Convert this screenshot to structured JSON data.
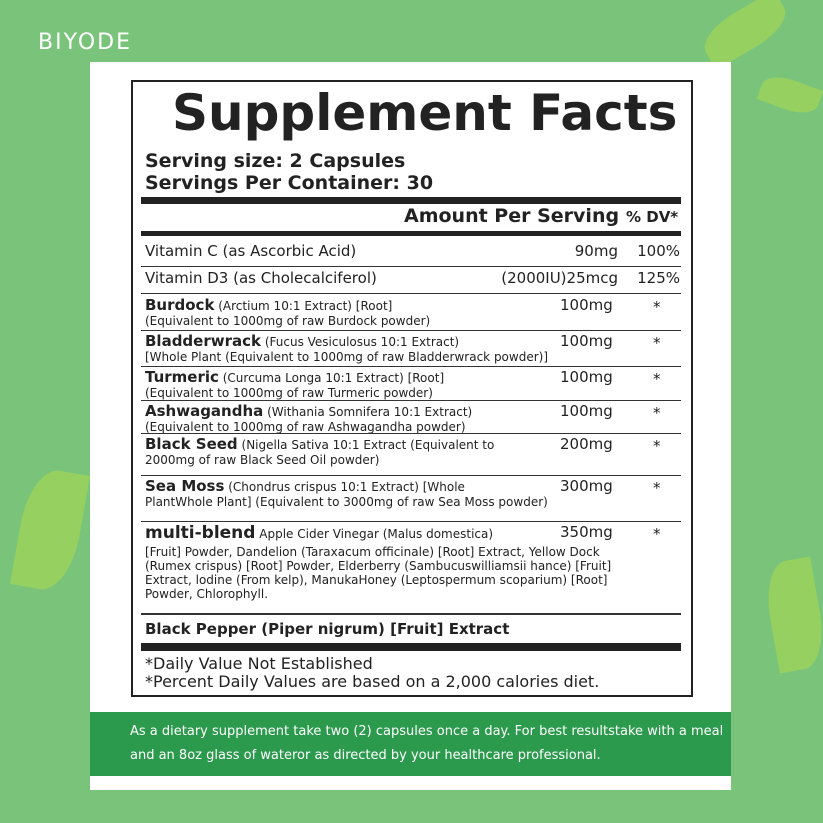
{
  "brand": "BIYODE",
  "label": {
    "title": "Supplement Facts",
    "serving_size": "Serving size: 2 Capsules",
    "servings_per_container": "Servings Per Container: 30",
    "amount_header": "Amount Per Serving",
    "dv_header": "% DV*",
    "vitamins": [
      {
        "name": "Vitamin C (as Ascorbic Acid)",
        "amount": "90mg",
        "dv": "100%"
      },
      {
        "name": "Vitamin D3 (as Cholecalciferol)",
        "amount": "(2000IU)25mcg",
        "dv": "125%"
      }
    ],
    "ingredients": [
      {
        "name": "Burdock",
        "detail": "(Arctium 10:1 Extract) [Root]",
        "lines": [
          "(Equivalent to 1000mg of raw Burdock powder)"
        ],
        "amount": "100mg",
        "dv": "*"
      },
      {
        "name": "Bladderwrack",
        "detail": "(Fucus Vesiculosus 10:1 Extract)",
        "lines": [
          "[Whole Plant (Equivalent to 1000mg of raw Bladderwrack powder)]"
        ],
        "amount": "100mg",
        "dv": "*"
      },
      {
        "name": "Turmeric",
        "detail": "(Curcuma Longa 10:1 Extract) [Root]",
        "lines": [
          "(Equivalent to 1000mg of raw Turmeric powder)"
        ],
        "amount": "100mg",
        "dv": "*"
      },
      {
        "name": "Ashwagandha",
        "detail": "(Withania Somnifera 10:1 Extract)",
        "lines": [
          "(Equivalent to 1000mg of raw Ashwagandha powder)"
        ],
        "amount": "100mg",
        "dv": "*"
      },
      {
        "name": "Black Seed",
        "detail": "(Nigella Sativa 10:1 Extract (Equivalent to",
        "lines": [
          "2000mg of raw Black Seed Oil powder)"
        ],
        "amount": "200mg",
        "dv": "*"
      },
      {
        "name": "Sea Moss",
        "detail": "(Chondrus crispus 10:1 Extract) [Whole",
        "lines": [
          "PlantWhole Plant] (Equivalent to 3000mg of raw Sea Moss powder)"
        ],
        "amount": "300mg",
        "dv": "*"
      },
      {
        "name": "multi-blend",
        "detail": "Apple Cider Vinegar (Malus domestica)",
        "lines": [
          "[Fruit] Powder, Dandelion (Taraxacum officinale) [Root] Extract, Yellow Dock",
          "(Rumex crispus) [Root] Powder, Elderberry (Sambucuswilliamsii hance) [Fruit]",
          "Extract, lodine (From kelp), ManukaHoney (Leptospermum scoparium) [Root]",
          "Powder, Chlorophyll."
        ],
        "amount": "350mg",
        "dv": "*"
      }
    ],
    "black_pepper": "Black Pepper (Piper nigrum) [Fruit] Extract",
    "footnotes": [
      "*Daily Value Not Established",
      "*Percent Daily Values are based on a 2,000 calories diet."
    ]
  },
  "footer": {
    "lines": [
      "As a dietary supplement take two (2) capsules once a day. For best resultstake with a meal",
      "and an 8oz glass of wateror as directed by  your healthcare professional."
    ]
  }
}
